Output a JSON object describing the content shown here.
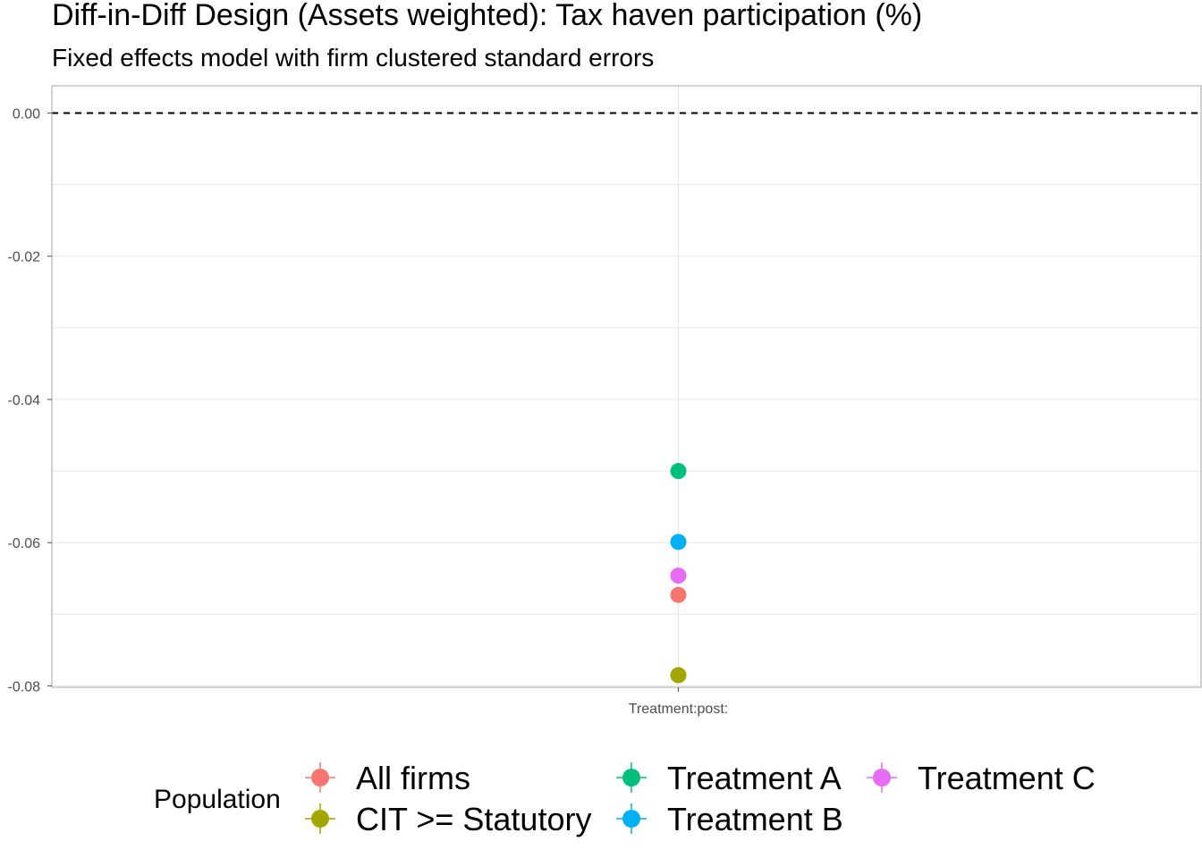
{
  "chart_data": {
    "type": "scatter",
    "title": "Diff-in-Diff Design (Assets weighted): Tax haven participation (%)",
    "subtitle": "Fixed effects model with firm clustered standard errors",
    "xlabel": "",
    "ylabel": "",
    "categories": [
      "Treatment:post:"
    ],
    "ylim": [
      -0.0802,
      0.0038
    ],
    "yticks": [
      0.0,
      -0.02,
      -0.04,
      -0.06,
      -0.08
    ],
    "ytick_labels": [
      "0.00",
      "-0.02",
      "-0.04",
      "-0.06",
      "-0.08"
    ],
    "reference_line": {
      "y": 0.0,
      "style": "dashed"
    },
    "grid": true,
    "legend": {
      "title": "Population",
      "position": "bottom"
    },
    "series": [
      {
        "name": "All firms",
        "color": "#F8766D",
        "values": [
          -0.0673
        ]
      },
      {
        "name": "CIT >= Statutory",
        "color": "#A3A500",
        "values": [
          -0.0785
        ]
      },
      {
        "name": "Treatment A",
        "color": "#00BF7D",
        "values": [
          -0.05
        ]
      },
      {
        "name": "Treatment B",
        "color": "#00B0F6",
        "values": [
          -0.0599
        ]
      },
      {
        "name": "Treatment C",
        "color": "#E76BF3",
        "values": [
          -0.0646
        ]
      }
    ]
  }
}
